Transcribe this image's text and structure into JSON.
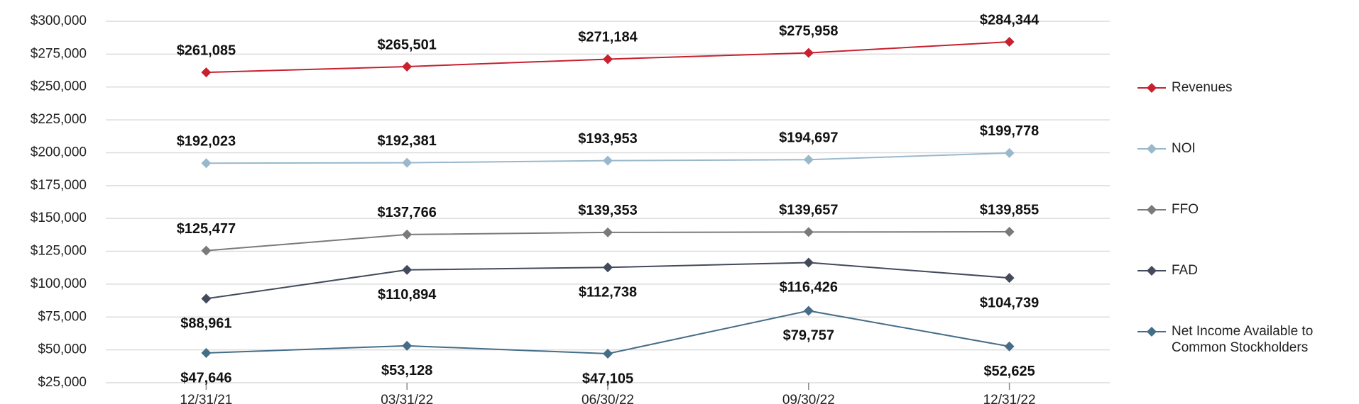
{
  "chart_data": {
    "type": "line",
    "categories": [
      "12/31/21",
      "03/31/22",
      "06/30/22",
      "09/30/22",
      "12/31/22"
    ],
    "series": [
      {
        "name": "Revenues",
        "color": "#c8202f",
        "values": [
          261085,
          265501,
          271184,
          275958,
          284344
        ],
        "value_labels": [
          "$261,085",
          "$265,501",
          "$271,184",
          "$275,958",
          "$284,344"
        ]
      },
      {
        "name": "NOI",
        "color": "#9ab8cc",
        "values": [
          192023,
          192381,
          193953,
          194697,
          199778
        ],
        "value_labels": [
          "$192,023",
          "$192,381",
          "$193,953",
          "$194,697",
          "$199,778"
        ]
      },
      {
        "name": "FFO",
        "color": "#7a7a7a",
        "values": [
          125477,
          137766,
          139353,
          139657,
          139855
        ],
        "value_labels": [
          "$125,477",
          "$137,766",
          "$139,353",
          "$139,657",
          "$139,855"
        ]
      },
      {
        "name": "FAD",
        "color": "#434a5c",
        "values": [
          88961,
          110894,
          112738,
          116426,
          104739
        ],
        "value_labels": [
          "$88,961",
          "$110,894",
          "$112,738",
          "$116,426",
          "$104,739"
        ]
      },
      {
        "name": "Net Income Available to Common Stockholders",
        "color": "#456d88",
        "values": [
          47646,
          53128,
          47105,
          79757,
          52625
        ],
        "value_labels": [
          "$47,646",
          "$53,128",
          "$47,105",
          "$79,757",
          "$52,625"
        ]
      }
    ],
    "ylim": [
      25000,
      300000
    ],
    "yticks": [
      {
        "value": 25000,
        "label": "$25,000"
      },
      {
        "value": 50000,
        "label": "$50,000"
      },
      {
        "value": 75000,
        "label": "$75,000"
      },
      {
        "value": 100000,
        "label": "$100,000"
      },
      {
        "value": 125000,
        "label": "$125,000"
      },
      {
        "value": 150000,
        "label": "$150,000"
      },
      {
        "value": 175000,
        "label": "$175,000"
      },
      {
        "value": 200000,
        "label": "$200,000"
      },
      {
        "value": 225000,
        "label": "$225,000"
      },
      {
        "value": 250000,
        "label": "$250,000"
      },
      {
        "value": 275000,
        "label": "$275,000"
      },
      {
        "value": 300000,
        "label": "$300,000"
      }
    ],
    "grid": true,
    "legend": "right"
  }
}
